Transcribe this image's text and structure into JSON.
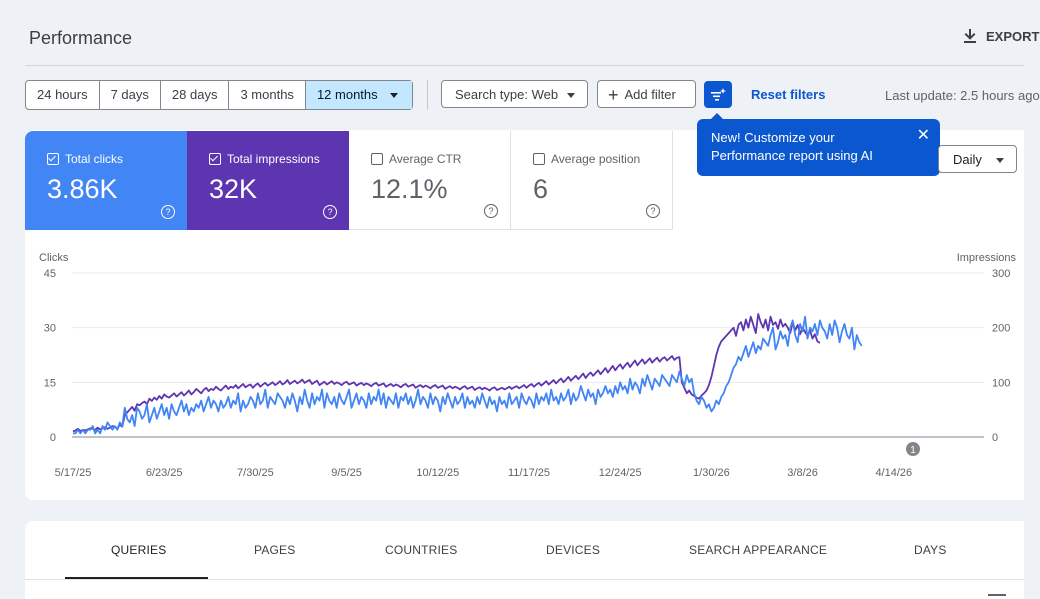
{
  "page": {
    "title": "Performance",
    "export_label": "EXPORT"
  },
  "toolbar": {
    "date_ranges": [
      "24 hours",
      "7 days",
      "28 days",
      "3 months",
      "12 months"
    ],
    "selected_range": "12 months",
    "search_type": "Search type: Web",
    "add_filter": "Add filter",
    "reset_filters": "Reset filters",
    "last_update": "Last update: 2.5 hours ago"
  },
  "tooltip": {
    "line1": "New! Customize your",
    "line2": "Performance report using AI",
    "close": "✕"
  },
  "granularity": "Daily",
  "metrics": [
    {
      "label": "Total clicks",
      "value": "3.86K",
      "checked": true,
      "color": "#4285f4"
    },
    {
      "label": "Total impressions",
      "value": "32K",
      "checked": true,
      "color": "#5e35b1"
    },
    {
      "label": "Average CTR",
      "value": "12.1%",
      "checked": false
    },
    {
      "label": "Average position",
      "value": "6",
      "checked": false
    }
  ],
  "annotation_badge": "1",
  "chart_data": {
    "type": "line",
    "x_tick_labels": [
      "5/17/25",
      "6/23/25",
      "7/30/25",
      "9/5/25",
      "10/12/25",
      "11/17/25",
      "12/24/25",
      "1/30/26",
      "3/8/26",
      "4/14/26"
    ],
    "left_axis": {
      "label": "Clicks",
      "ticks": [
        0,
        15,
        30,
        45
      ],
      "range": [
        0,
        45
      ]
    },
    "right_axis": {
      "label": "Impressions",
      "ticks": [
        0,
        100,
        200,
        300
      ],
      "range": [
        0,
        300
      ]
    },
    "grid": true,
    "series": [
      {
        "name": "Clicks",
        "axis": "left",
        "color": "#4285f4",
        "points_per_tick_interval": 37,
        "values": [
          1,
          1,
          2,
          1,
          2,
          1,
          2,
          2,
          3,
          1,
          2,
          1,
          3,
          2,
          4,
          3,
          2,
          3,
          2,
          4,
          3,
          8,
          5,
          4,
          6,
          3,
          8,
          7,
          5,
          6,
          9,
          4,
          6,
          8,
          5,
          7,
          9,
          6,
          8,
          5,
          9,
          7,
          6,
          8,
          10,
          7,
          9,
          6,
          8,
          7,
          9,
          8,
          10,
          7,
          9,
          11,
          8,
          10,
          9,
          7,
          10,
          8,
          9,
          11,
          8,
          10,
          9,
          12,
          7,
          10,
          8,
          9,
          11,
          10,
          8,
          12,
          9,
          10,
          13,
          8,
          11,
          10,
          9,
          12,
          11,
          10,
          8,
          11,
          9,
          12,
          10,
          7,
          11,
          9,
          13,
          10,
          8,
          12,
          9,
          11,
          10,
          13,
          8,
          12,
          10,
          9,
          11,
          8,
          12,
          10,
          9,
          11,
          13,
          8,
          10,
          12,
          9,
          11,
          10,
          8,
          12,
          9,
          11,
          10,
          13,
          9,
          12,
          8,
          11,
          10,
          9,
          12,
          8,
          11,
          10,
          12,
          9,
          11,
          8,
          10,
          13,
          9,
          11,
          10,
          8,
          12,
          9,
          11,
          10,
          7,
          11,
          9,
          12,
          10,
          8,
          11,
          9,
          10,
          12,
          8,
          11,
          9,
          10,
          8,
          11,
          9,
          12,
          10,
          8,
          11,
          9,
          10,
          7,
          11,
          9,
          10,
          8,
          12,
          9,
          10,
          11,
          8,
          12,
          10,
          9,
          11,
          10,
          8,
          12,
          9,
          11,
          10,
          12,
          9,
          13,
          10,
          11,
          9,
          12,
          10,
          11,
          13,
          9,
          12,
          10,
          11,
          14,
          12,
          10,
          13,
          11,
          12,
          9,
          13,
          11,
          12,
          14,
          12,
          13,
          11,
          14,
          12,
          15,
          13,
          14,
          12,
          16,
          13,
          15,
          14,
          12,
          16,
          14,
          17,
          15,
          13,
          16,
          15,
          14,
          17,
          16,
          15,
          14,
          17,
          16,
          15,
          18,
          16,
          14,
          17,
          15,
          16,
          12,
          10,
          9,
          11,
          10,
          8,
          9,
          7,
          8,
          10,
          9,
          11,
          12,
          14,
          15,
          17,
          19,
          20,
          22,
          21,
          23,
          25,
          22,
          24,
          26,
          23,
          25,
          24,
          27,
          26,
          25,
          28,
          30,
          24,
          26,
          29,
          27,
          28,
          25,
          30,
          32,
          28,
          26,
          31,
          29,
          33,
          27,
          30,
          29,
          31,
          28,
          32,
          30,
          29,
          27,
          31,
          28,
          32,
          30,
          26,
          29,
          31,
          28,
          27,
          30,
          24,
          28,
          26,
          25
        ]
      },
      {
        "name": "Impressions",
        "axis": "right",
        "color": "#5e35b1",
        "points_per_tick_interval": 37,
        "values": [
          10,
          12,
          15,
          11,
          13,
          12,
          14,
          16,
          15,
          13,
          17,
          14,
          16,
          18,
          15,
          17,
          20,
          18,
          16,
          22,
          19,
          40,
          45,
          50,
          55,
          48,
          60,
          58,
          62,
          65,
          60,
          70,
          66,
          72,
          68,
          75,
          70,
          78,
          74,
          72,
          76,
          80,
          74,
          78,
          82,
          76,
          80,
          85,
          78,
          82,
          88,
          84,
          80,
          86,
          90,
          84,
          88,
          86,
          92,
          88,
          85,
          90,
          94,
          88,
          92,
          90,
          95,
          89,
          93,
          97,
          91,
          94,
          96,
          90,
          95,
          98,
          92,
          96,
          99,
          94,
          97,
          100,
          95,
          98,
          102,
          96,
          99,
          104,
          97,
          100,
          103,
          98,
          101,
          105,
          99,
          102,
          104,
          97,
          100,
          103,
          95,
          98,
          101,
          96,
          99,
          102,
          97,
          100,
          98,
          95,
          99,
          101,
          96,
          98,
          100,
          94,
          97,
          99,
          95,
          98,
          96,
          93,
          97,
          99,
          94,
          96,
          98,
          92,
          95,
          97,
          93,
          96,
          94,
          91,
          95,
          97,
          92,
          94,
          96,
          90,
          93,
          95,
          91,
          94,
          92,
          89,
          93,
          95,
          90,
          92,
          94,
          88,
          91,
          93,
          89,
          92,
          90,
          87,
          91,
          93,
          88,
          90,
          92,
          86,
          89,
          91,
          87,
          90,
          88,
          85,
          89,
          91,
          86,
          88,
          90,
          87,
          89,
          92,
          88,
          91,
          93,
          89,
          92,
          95,
          90,
          94,
          97,
          92,
          96,
          99,
          94,
          98,
          102,
          96,
          100,
          104,
          98,
          103,
          107,
          100,
          105,
          110,
          103,
          108,
          112,
          106,
          111,
          116,
          108,
          114,
          118,
          112,
          117,
          122,
          115,
          120,
          126,
          118,
          124,
          130,
          122,
          128,
          133,
          125,
          131,
          136,
          128,
          134,
          140,
          131,
          137,
          142,
          134,
          139,
          144,
          136,
          141,
          145,
          138,
          143,
          146,
          140,
          144,
          148,
          141,
          145,
          146,
          100,
          90,
          80,
          85,
          78,
          75,
          72,
          70,
          76,
          80,
          85,
          95,
          110,
          130,
          150,
          165,
          175,
          180,
          185,
          190,
          195,
          200,
          185,
          205,
          210,
          195,
          215,
          200,
          220,
          205,
          190,
          225,
          210,
          200,
          215,
          195,
          220,
          205,
          210,
          198,
          215,
          202,
          207,
          200,
          190,
          210,
          195,
          205,
          188,
          200,
          192,
          185,
          195,
          180,
          188,
          175,
          172
        ]
      }
    ]
  },
  "tabs": [
    "QUERIES",
    "PAGES",
    "COUNTRIES",
    "DEVICES",
    "SEARCH APPEARANCE",
    "DAYS"
  ],
  "active_tab": "QUERIES"
}
